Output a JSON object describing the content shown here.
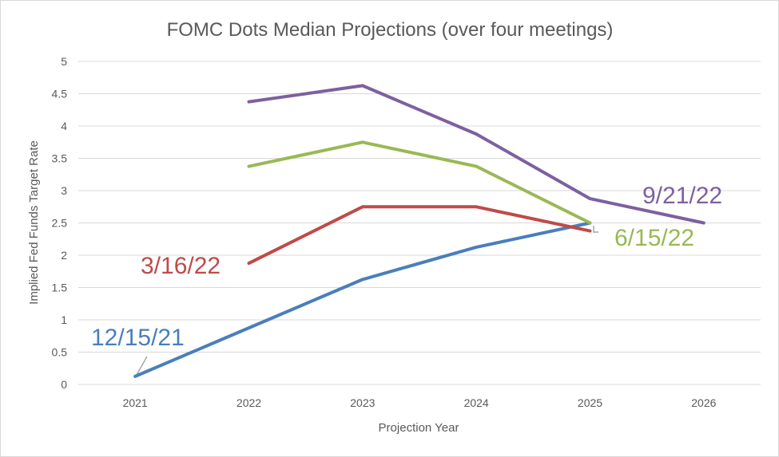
{
  "chart_data": {
    "type": "line",
    "title": "FOMC Dots Median Projections (over four meetings)",
    "xlabel": "Projection Year",
    "ylabel": "Implied Fed Funds Target Rate",
    "categories": [
      "2021",
      "2022",
      "2023",
      "2024",
      "2025",
      "2026"
    ],
    "yticks": [
      "0",
      "0.5",
      "1",
      "1.5",
      "2",
      "2.5",
      "3",
      "3.5",
      "4",
      "4.5",
      "5"
    ],
    "ylim": [
      0,
      5
    ],
    "grid": true,
    "legend": "none (series labeled directly on chart)",
    "series": [
      {
        "name": "12/15/21",
        "color": "#4a7ebb",
        "values": [
          0.125,
          0.875,
          1.625,
          2.125,
          2.5,
          null
        ]
      },
      {
        "name": "3/16/22",
        "color": "#be4b48",
        "values": [
          null,
          1.875,
          2.75,
          2.75,
          2.375,
          null
        ]
      },
      {
        "name": "6/15/22",
        "color": "#98b954",
        "values": [
          null,
          3.375,
          3.75,
          3.375,
          2.5,
          null
        ]
      },
      {
        "name": "9/21/22",
        "color": "#7d60a0",
        "values": [
          null,
          4.375,
          4.625,
          3.875,
          2.875,
          2.5
        ]
      }
    ]
  }
}
